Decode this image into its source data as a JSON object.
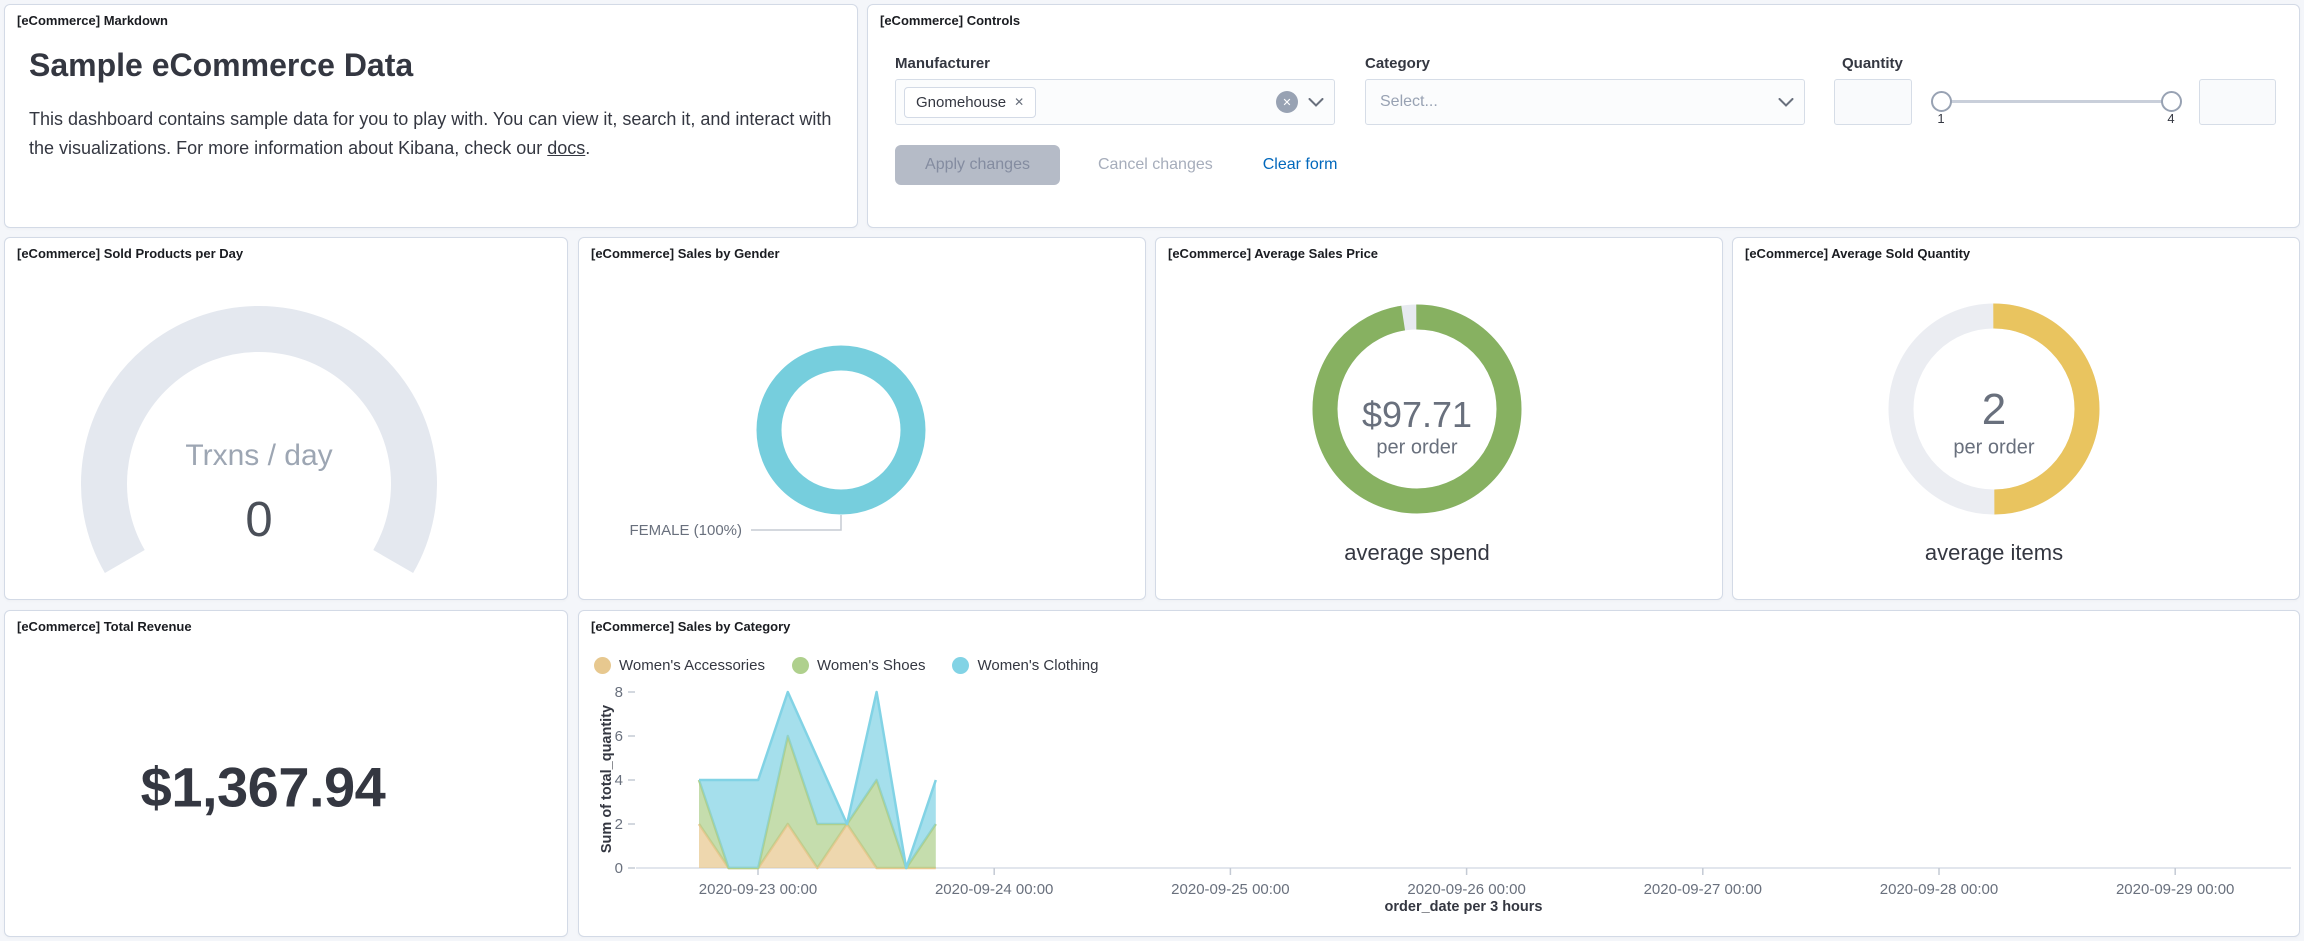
{
  "panels": {
    "markdown": {
      "title": "[eCommerce] Markdown",
      "heading": "Sample eCommerce Data",
      "body_before_link": "This dashboard contains sample data for you to play with. You can view it, search it, and interact with the visualizations. For more information about Kibana, check our ",
      "link_text": "docs",
      "body_after_link": "."
    },
    "controls": {
      "title": "[eCommerce] Controls",
      "manufacturer": {
        "label": "Manufacturer",
        "selected_tag": "Gnomehouse",
        "remove_tag_icon": "✕"
      },
      "category": {
        "label": "Category",
        "placeholder": "Select..."
      },
      "quantity": {
        "label": "Quantity",
        "min_label": "1",
        "max_label": "4"
      },
      "apply_label": "Apply changes",
      "cancel_label": "Cancel changes",
      "clear_label": "Clear form"
    },
    "sold_products": {
      "title": "[eCommerce] Sold Products per Day",
      "gauge_label": "Trxns / day",
      "gauge_value": "0"
    },
    "sales_by_gender": {
      "title": "[eCommerce] Sales by Gender",
      "callout": "FEMALE (100%)"
    },
    "avg_sales_price": {
      "title": "[eCommerce] Average Sales Price",
      "value": "$97.71",
      "sub": "per order",
      "caption": "average spend"
    },
    "avg_sold_quantity": {
      "title": "[eCommerce] Average Sold Quantity",
      "value": "2",
      "sub": "per order",
      "caption": "average items"
    },
    "total_revenue": {
      "title": "[eCommerce] Total Revenue",
      "value": "$1,367.94"
    },
    "sales_by_category": {
      "title": "[eCommerce] Sales by Category",
      "y_axis_title": "Sum of total_quantity",
      "x_axis_title": "order_date per 3 hours"
    }
  },
  "chart_data": [
    {
      "type": "gauge",
      "panel": "sold-products-per-day",
      "label": "Trxns / day",
      "value": 0,
      "arc_color": "#E4E8EF"
    },
    {
      "type": "pie",
      "panel": "sales-by-gender",
      "slices": [
        {
          "label": "FEMALE",
          "percent": 100
        }
      ],
      "color": "#76CEDD",
      "callout": "FEMALE (100%)"
    },
    {
      "type": "gauge",
      "panel": "average-sales-price",
      "value": 97.71,
      "max": 100,
      "display": "$97.71",
      "subtitle": "per order",
      "caption": "average spend",
      "color": "#87B161",
      "track_color": "#E7EAF0"
    },
    {
      "type": "gauge",
      "panel": "average-sold-quantity",
      "value": 2,
      "max": 4,
      "display": "2",
      "subtitle": "per order",
      "caption": "average items",
      "color": "#E9C45F",
      "track_color": "#EBEDF2"
    },
    {
      "type": "metric",
      "panel": "total-revenue",
      "display": "$1,367.94"
    },
    {
      "type": "area",
      "panel": "sales-by-category",
      "stacked": true,
      "grid": false,
      "legend_position": "top",
      "title": "[eCommerce] Sales by Category",
      "xlabel": "order_date per 3 hours",
      "ylabel": "Sum of total_quantity",
      "ylim": [
        0,
        8
      ],
      "y_ticks": [
        0,
        2,
        4,
        6,
        8
      ],
      "x_ticks": [
        "2020-09-23 00:00",
        "2020-09-24 00:00",
        "2020-09-25 00:00",
        "2020-09-26 00:00",
        "2020-09-27 00:00",
        "2020-09-28 00:00",
        "2020-09-29 00:00"
      ],
      "x": [
        "2020-09-22 18:00",
        "2020-09-22 21:00",
        "2020-09-23 00:00",
        "2020-09-23 03:00",
        "2020-09-23 06:00",
        "2020-09-23 09:00",
        "2020-09-23 12:00",
        "2020-09-23 15:00",
        "2020-09-23 18:00"
      ],
      "series": [
        {
          "name": "Women's Accessories",
          "color": "#E7C88F",
          "values": [
            2,
            0,
            0,
            2,
            0,
            2,
            0,
            0,
            0
          ]
        },
        {
          "name": "Women's Shoes",
          "color": "#AFD08D",
          "values": [
            2,
            0,
            0,
            4,
            2,
            0,
            4,
            0,
            2
          ]
        },
        {
          "name": "Women's Clothing",
          "color": "#82D3E5",
          "values": [
            0,
            4,
            4,
            2,
            3,
            0,
            4,
            0,
            2
          ]
        }
      ]
    }
  ]
}
